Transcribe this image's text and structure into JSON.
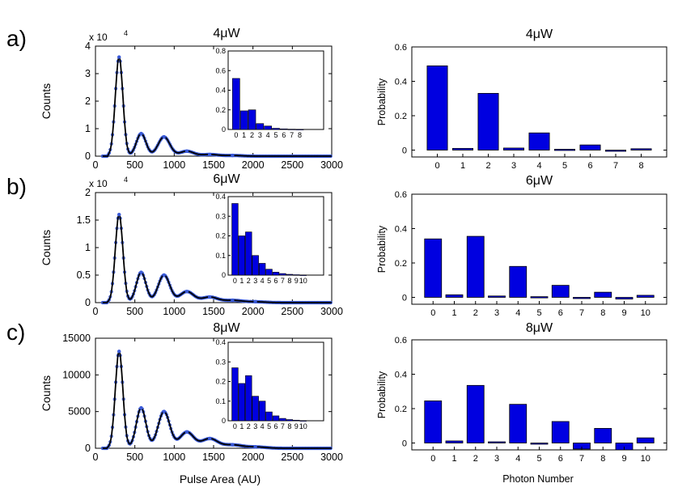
{
  "colors": {
    "bar": "#0000e0",
    "bar_stroke": "#000000",
    "fit": "#000000",
    "points": "#3a5ad8"
  },
  "figure_labels": {
    "pulse_area_xlabel": "Pulse Area (AU)",
    "photon_number_xlabel": "Photon Number",
    "counts_ylabel": "Counts",
    "probability_ylabel": "Probability"
  },
  "chart_data": [
    {
      "id": "a-left",
      "panel_letter": "a)",
      "type": "line",
      "title": "4μW",
      "ylabel": "Counts",
      "multiplier": "x 10",
      "multiplier_exp": "4",
      "xlim": [
        0,
        3000
      ],
      "ylim": [
        0,
        4
      ],
      "xticks": [
        0,
        500,
        1000,
        1500,
        2000,
        2500,
        3000
      ],
      "yticks": [
        0,
        1,
        2,
        3,
        4
      ],
      "baseline_start": 160,
      "peak_width": 48,
      "peak_growth": 0.28,
      "peaks": [
        [
          300,
          3.6
        ],
        [
          580,
          0.82
        ],
        [
          870,
          0.7
        ],
        [
          1160,
          0.18
        ],
        [
          1450,
          0.06
        ],
        [
          1740,
          0.025
        ]
      ],
      "inset": {
        "categories": [
          "0",
          "1",
          "2",
          "3",
          "4",
          "5",
          "6",
          "7",
          "8"
        ],
        "values": [
          0.52,
          0.19,
          0.2,
          0.06,
          0.035,
          0.012,
          0.006,
          0.003,
          0.002
        ],
        "ylim": [
          0,
          0.8
        ],
        "yticks": [
          0,
          0.2,
          0.4,
          0.6,
          0.8
        ]
      }
    },
    {
      "id": "a-right",
      "type": "bar",
      "title": "4μW",
      "ylabel": "Probability",
      "categories": [
        "0",
        "1",
        "2",
        "3",
        "4",
        "5",
        "6",
        "7",
        "8"
      ],
      "values": [
        0.49,
        0.01,
        0.33,
        0.012,
        0.1,
        0.005,
        0.03,
        -0.005,
        0.008
      ],
      "ylim": [
        -0.04,
        0.6
      ],
      "yticks": [
        0,
        0.2,
        0.4,
        0.6
      ]
    },
    {
      "id": "b-left",
      "panel_letter": "b)",
      "type": "line",
      "title": "6μW",
      "ylabel": "Counts",
      "multiplier": "x 10",
      "multiplier_exp": "4",
      "xlim": [
        0,
        3000
      ],
      "ylim": [
        0,
        2
      ],
      "xticks": [
        0,
        500,
        1000,
        1500,
        2000,
        2500,
        3000
      ],
      "yticks": [
        0,
        0.5,
        1,
        1.5,
        2
      ],
      "baseline_start": 150,
      "peak_width": 48,
      "peak_growth": 0.28,
      "peaks": [
        [
          300,
          1.6
        ],
        [
          580,
          0.55
        ],
        [
          870,
          0.5
        ],
        [
          1160,
          0.2
        ],
        [
          1450,
          0.1
        ],
        [
          1740,
          0.04
        ],
        [
          2030,
          0.015
        ]
      ],
      "inset": {
        "categories": [
          "0",
          "1",
          "2",
          "3",
          "4",
          "5",
          "6",
          "7",
          "8",
          "9",
          "10"
        ],
        "values": [
          0.365,
          0.2,
          0.22,
          0.1,
          0.06,
          0.03,
          0.015,
          0.008,
          0.004,
          0.002,
          0.001
        ],
        "ylim": [
          0,
          0.4
        ],
        "yticks": [
          0,
          0.1,
          0.2,
          0.3,
          0.4
        ]
      }
    },
    {
      "id": "b-right",
      "type": "bar",
      "title": "6μW",
      "ylabel": "Probability",
      "categories": [
        "0",
        "1",
        "2",
        "3",
        "4",
        "5",
        "6",
        "7",
        "8",
        "9",
        "10"
      ],
      "values": [
        0.34,
        0.015,
        0.355,
        0.008,
        0.18,
        0.004,
        0.07,
        -0.004,
        0.03,
        -0.01,
        0.012
      ],
      "ylim": [
        -0.04,
        0.6
      ],
      "yticks": [
        0,
        0.2,
        0.4,
        0.6
      ]
    },
    {
      "id": "c-left",
      "panel_letter": "c)",
      "type": "line",
      "title": "8μW",
      "ylabel": "Counts",
      "xlabel": "Pulse Area (AU)",
      "xlim": [
        0,
        3000
      ],
      "ylim": [
        0,
        15000
      ],
      "xticks": [
        0,
        500,
        1000,
        1500,
        2000,
        2500,
        3000
      ],
      "yticks": [
        0,
        5000,
        10000,
        15000
      ],
      "baseline_start": 150,
      "peak_width": 48,
      "peak_growth": 0.28,
      "peaks": [
        [
          300,
          13200
        ],
        [
          580,
          5500
        ],
        [
          870,
          5000
        ],
        [
          1160,
          2200
        ],
        [
          1450,
          1300
        ],
        [
          1740,
          450
        ],
        [
          2030,
          180
        ]
      ],
      "inset": {
        "categories": [
          "0",
          "1",
          "2",
          "3",
          "4",
          "5",
          "6",
          "7",
          "8",
          "9",
          "10"
        ],
        "values": [
          0.27,
          0.19,
          0.23,
          0.125,
          0.1,
          0.045,
          0.025,
          0.012,
          0.006,
          0.003,
          0.001
        ],
        "ylim": [
          0,
          0.4
        ],
        "yticks": [
          0,
          0.1,
          0.2,
          0.3,
          0.4
        ]
      }
    },
    {
      "id": "c-right",
      "type": "bar",
      "title": "8μW",
      "ylabel": "Probability",
      "xlabel": "Photon Number",
      "categories": [
        "0",
        "1",
        "2",
        "3",
        "4",
        "5",
        "6",
        "7",
        "8",
        "9",
        "10"
      ],
      "values": [
        0.245,
        0.012,
        0.335,
        0.007,
        0.225,
        -0.006,
        0.125,
        -0.035,
        0.085,
        -0.04,
        0.03
      ],
      "ylim": [
        -0.04,
        0.6
      ],
      "yticks": [
        0,
        0.2,
        0.4,
        0.6
      ]
    }
  ]
}
